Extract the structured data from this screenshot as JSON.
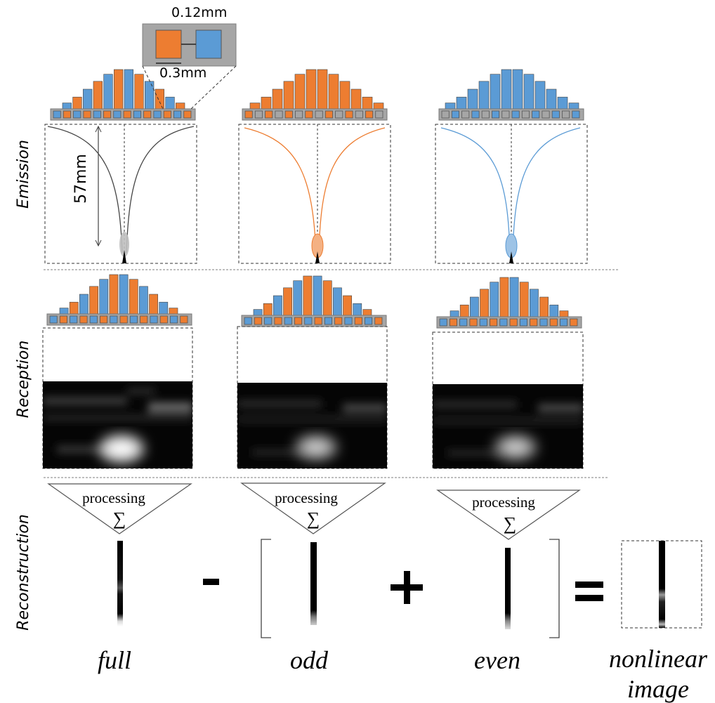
{
  "rows": {
    "emission": "Emission",
    "reception": "Reception",
    "reconstruction": "Reconstruction"
  },
  "inset": {
    "pitch": "0.12mm",
    "element": "0.3mm"
  },
  "depth": "57mm",
  "processing": "processing",
  "sigma": "∑",
  "operators": {
    "minus": "-",
    "plus": "+",
    "equals": "="
  },
  "captions": {
    "full": "full",
    "odd": "odd",
    "even": "even",
    "nonlinear": [
      "nonlinear",
      "image"
    ]
  },
  "colors": {
    "orange": "#ed7d31",
    "blue": "#5b9bd5",
    "gray": "#a6a6a6",
    "dark": "#404040"
  },
  "apodization_levels": [
    0.15,
    0.3,
    0.5,
    0.7,
    0.88,
    1.0,
    1.0,
    0.88,
    0.7,
    0.5,
    0.3,
    0.15
  ],
  "element_pattern": {
    "full": [
      "blue",
      "orange",
      "blue",
      "orange",
      "blue",
      "orange",
      "blue",
      "orange",
      "blue",
      "orange",
      "blue",
      "orange",
      "blue",
      "orange"
    ],
    "odd": [
      "orange",
      "gray",
      "orange",
      "gray",
      "orange",
      "gray",
      "orange",
      "gray",
      "orange",
      "gray",
      "orange",
      "gray",
      "orange",
      "gray"
    ],
    "even": [
      "gray",
      "blue",
      "gray",
      "blue",
      "gray",
      "blue",
      "gray",
      "blue",
      "gray",
      "blue",
      "gray",
      "blue",
      "gray",
      "blue"
    ]
  }
}
